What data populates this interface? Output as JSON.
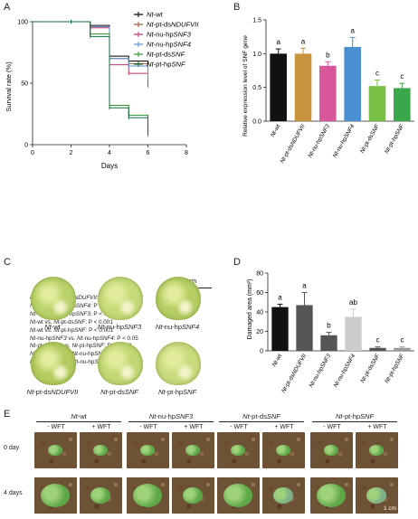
{
  "panels": {
    "a": "A",
    "b": "B",
    "c": "C",
    "d": "D",
    "e": "E"
  },
  "colors": {
    "nt_wt": "#000000",
    "nt_pt_dsNDUFVII": "#a0522d",
    "nt_nu_hpSNF3": "#c0306a",
    "nt_nu_hpSNF4": "#5b8fd0",
    "nt_pt_dsSNF": "#2f8f2f",
    "nt_pt_hpSNF": "#0b6b3a",
    "bar_black": "#111111",
    "bar_tan": "#c8943e",
    "bar_pink": "#d8569a",
    "bar_blue": "#4a90d0",
    "bar_lgreen": "#77c043",
    "bar_green": "#3aa84a",
    "bar_darkgray": "#555555",
    "bar_gray": "#999999",
    "bar_lightgray": "#cccccc"
  },
  "panel_a": {
    "chart_data": {
      "type": "line",
      "xlabel": "Days",
      "ylabel": "Survival rate (%)",
      "xlim": [
        0,
        8
      ],
      "ylim": [
        0,
        100
      ],
      "xticks": [
        "0",
        "2",
        "4",
        "6",
        "8"
      ],
      "yticks": [
        "0",
        "50",
        "100"
      ],
      "series": [
        {
          "name": "Nt-wt",
          "x": [
            0,
            2,
            3,
            4,
            5,
            6
          ],
          "values": [
            100,
            100,
            97,
            72,
            68,
            62
          ]
        },
        {
          "name": "Nt-pt-dsNDUFVII",
          "x": [
            0,
            2,
            3,
            4,
            5,
            6
          ],
          "values": [
            100,
            100,
            96,
            70,
            66,
            60
          ]
        },
        {
          "name": "Nt-nu-hpSNF3",
          "x": [
            0,
            2,
            3,
            4,
            5,
            6
          ],
          "values": [
            100,
            100,
            95,
            65,
            58,
            48
          ]
        },
        {
          "name": "Nt-nu-hpSNF4",
          "x": [
            0,
            2,
            3,
            4,
            5,
            6
          ],
          "values": [
            100,
            100,
            96,
            70,
            64,
            55
          ]
        },
        {
          "name": "Nt-pt-dsSNF",
          "x": [
            0,
            2,
            3,
            4,
            5,
            6
          ],
          "values": [
            100,
            100,
            90,
            32,
            24,
            10
          ]
        },
        {
          "name": "Nt-pt-hpSNF",
          "x": [
            0,
            2,
            3,
            4,
            5,
            6
          ],
          "values": [
            100,
            100,
            88,
            30,
            22,
            8
          ]
        }
      ],
      "legend": [
        {
          "prefix": "Nt",
          "suffix": "-wt"
        },
        {
          "prefix": "Nt",
          "suffix": "-pt-ds",
          "tail": "NDUFVII"
        },
        {
          "prefix": "Nt",
          "suffix": "-nu-hp",
          "tail": "SNF3"
        },
        {
          "prefix": "Nt",
          "suffix": "-nu-hp",
          "tail": "SNF4"
        },
        {
          "prefix": "Nt",
          "suffix": "-pt-ds",
          "tail": "SNF"
        },
        {
          "prefix": "Nt",
          "suffix": "-pt-hp",
          "tail": "SNF"
        }
      ]
    },
    "stats": [
      "Nt-wt vs. Nt-pt-dsNDUFVII: P = 0.721",
      "Nt-wt vs. Nt-nu-hpSNF4: P = 0.200",
      "Nt-wt vs. Nt-nu-hpSNF3: P < 0.01",
      "Nt-wt vs. Nt-pt-dsSNF: P < 0.001",
      "Nt-wt vs. Nt-pt-hpSNF: P < 0.001",
      "Nt-nu-hpSNF3 vs. Nt-nu-hpSNF4: P < 0.05",
      "Nt-pt-dsSNF vs. Nt-pt-hpSNF: P = 0.153",
      "Nt-pt-dsSNF vs. Nt-nu-hpSNF3: P < 0.001",
      "Nt-pt-hpSNF vs. Nt-nu-hpSNF3: P < 0.001"
    ]
  },
  "panel_b": {
    "chart_data": {
      "type": "bar",
      "ylabel": "Relative expression level of SNF gene",
      "ylim": [
        0,
        1.5
      ],
      "yticks": [
        "0.0",
        "0.5",
        "1.0",
        "1.5"
      ],
      "categories": [
        "Nt-wt",
        "Nt-pt-dsNDUFVII",
        "Nt-nu-hpSNF3",
        "Nt-nu-hpSNF4",
        "Nt-pt-dsSNF",
        "Nt-pt-hpSNF"
      ],
      "values": [
        1.0,
        1.0,
        0.82,
        1.1,
        0.52,
        0.49
      ],
      "errors": [
        0.07,
        0.08,
        0.06,
        0.14,
        0.09,
        0.07
      ],
      "letters": [
        "a",
        "a",
        "b",
        "a",
        "c",
        "c"
      ]
    }
  },
  "panel_c": {
    "scale_label": "1 cm",
    "labels": [
      "Nt-wt",
      "Nt-nu-hpSNF3",
      "Nt-nu-hpSNF4",
      "Nt-pt-dsNDUFVII",
      "Nt-pt-dsSNF",
      "Nt-pt-hpSNF"
    ]
  },
  "panel_d": {
    "chart_data": {
      "type": "bar",
      "ylabel": "Damaged area (mm²)",
      "ylim": [
        0,
        80
      ],
      "yticks": [
        "0",
        "20",
        "40",
        "60",
        "80"
      ],
      "categories": [
        "Nt-wt",
        "Nt-pt-dsNDUFVII",
        "Nt-nu-hpSNF3",
        "Nt-nu-hpSNF4",
        "Nt-pt-dsSNF",
        "Nt-pt-hpSNF"
      ],
      "values": [
        45,
        47,
        16,
        35,
        3,
        3
      ],
      "errors": [
        3,
        13,
        3,
        8,
        1,
        1
      ],
      "letters": [
        "a",
        "a",
        "b",
        "ab",
        "c",
        "c"
      ]
    }
  },
  "panel_e": {
    "groups": [
      "Nt-wt",
      "Nt-nu-hpSNF3",
      "Nt-pt-dsSNF",
      "Nt-pt-hpSNF"
    ],
    "treatments": [
      "- WFT",
      "+ WFT"
    ],
    "rows": [
      "0 day",
      "4 days"
    ],
    "scale_label": "1 cm"
  }
}
